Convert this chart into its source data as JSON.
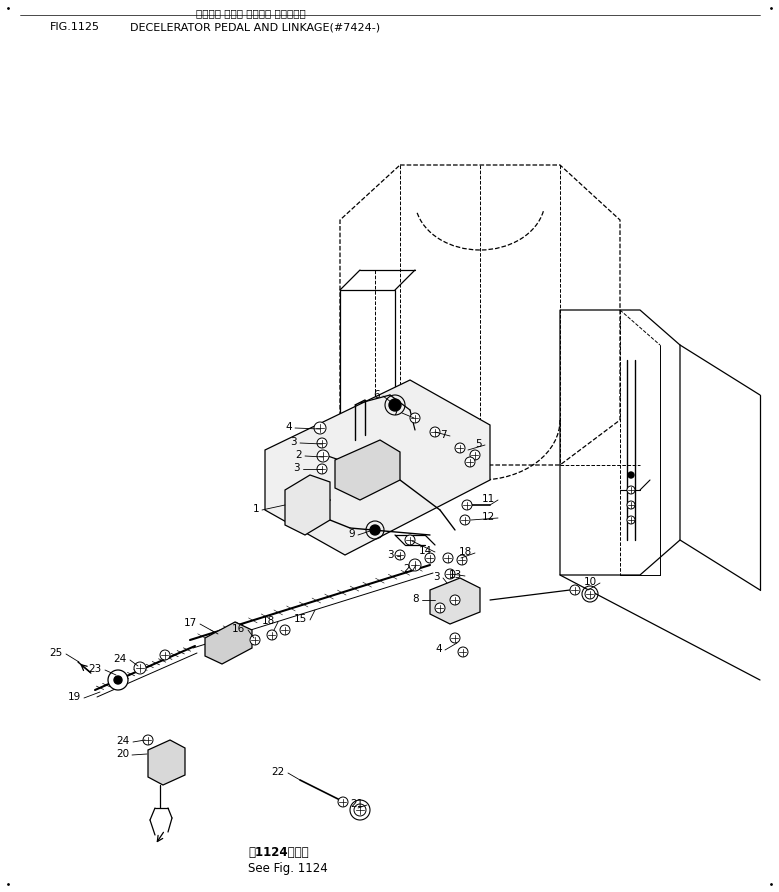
{
  "title_japanese": "デクセル ペダル オヨビ・ リンケージ",
  "title_english": "DECELERATOR PEDAL AND LINKAGE(#7424-)",
  "fig_number": "FIG.1125",
  "bottom_japanese": "第1124図参照",
  "bottom_english": "See Fig. 1124",
  "bg_color": "#ffffff"
}
